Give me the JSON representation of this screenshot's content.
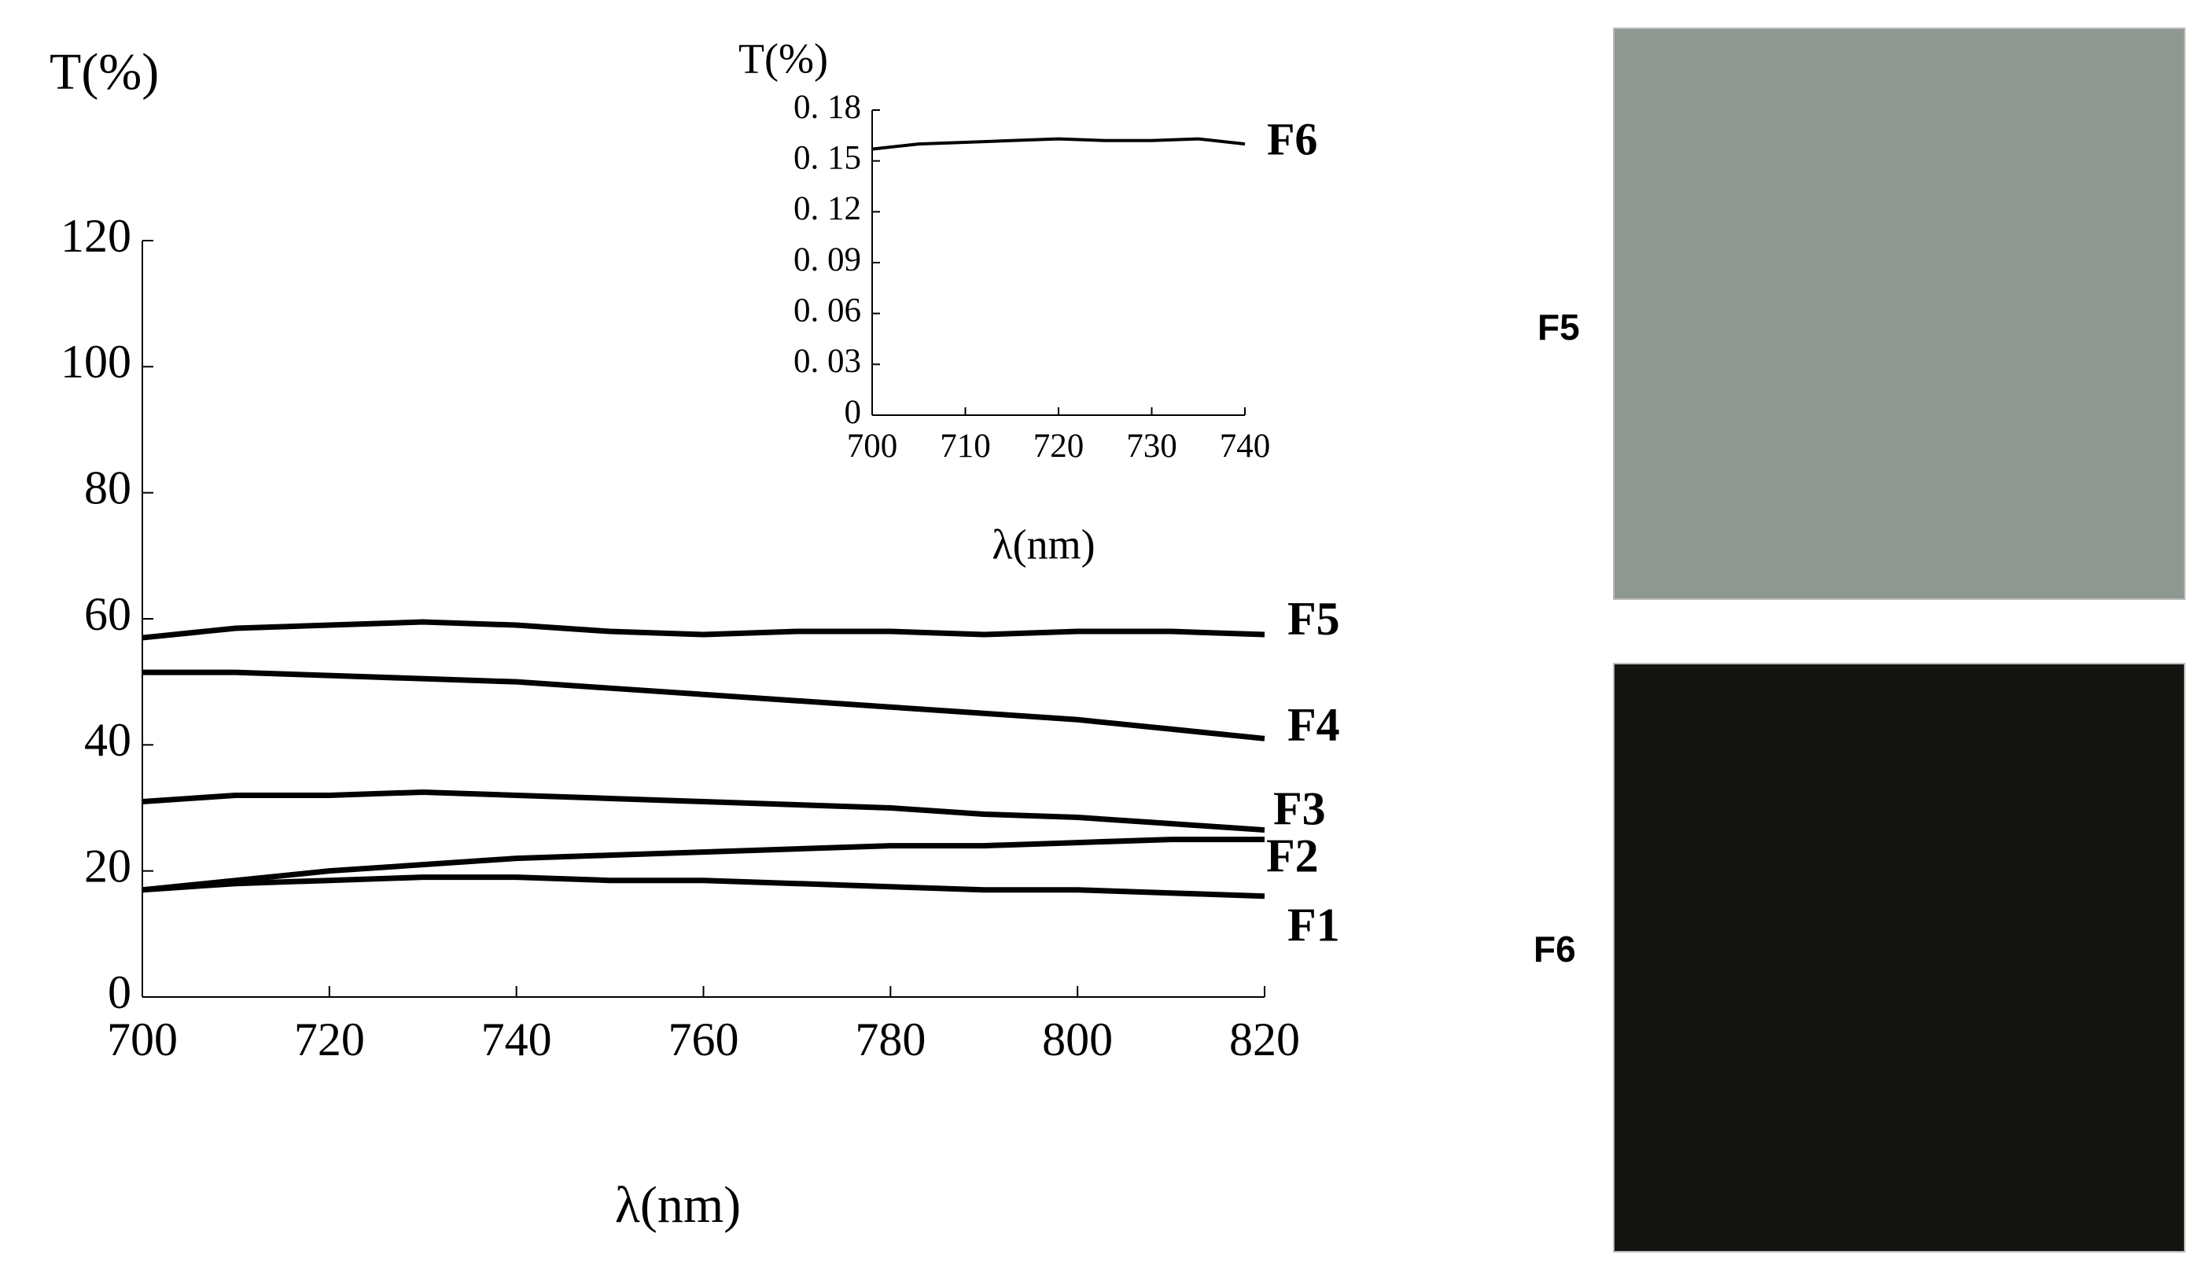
{
  "chart_data": [
    {
      "type": "line",
      "y_label": "T(%)",
      "x_label": "λ(nm)",
      "x": [
        700,
        710,
        720,
        730,
        740,
        750,
        760,
        770,
        780,
        790,
        800,
        810,
        820
      ],
      "series": [
        {
          "name": "F1",
          "color": "#000000",
          "values": [
            17,
            18,
            18.5,
            19,
            19,
            18.5,
            18.5,
            18,
            17.5,
            17,
            17,
            16.5,
            16
          ]
        },
        {
          "name": "F2",
          "color": "#000000",
          "values": [
            17,
            18.5,
            20,
            21,
            22,
            22.5,
            23,
            23.5,
            24,
            24,
            24.5,
            25,
            25
          ]
        },
        {
          "name": "F3",
          "color": "#000000",
          "values": [
            31,
            32,
            32,
            32.5,
            32,
            31.5,
            31,
            30.5,
            30,
            29,
            28.5,
            27.5,
            26.5
          ]
        },
        {
          "name": "F4",
          "color": "#000000",
          "values": [
            51.5,
            51.5,
            51,
            50.5,
            50,
            49,
            48,
            47,
            46,
            45,
            44,
            42.5,
            41
          ]
        },
        {
          "name": "F5",
          "color": "#000000",
          "values": [
            57,
            58.5,
            59,
            59.5,
            59,
            58,
            57.5,
            58,
            58,
            57.5,
            58,
            58,
            57.5
          ]
        }
      ],
      "xlim": [
        700,
        820
      ],
      "xticks": [
        700,
        720,
        740,
        760,
        780,
        800,
        820
      ],
      "ylim": [
        0,
        120
      ],
      "yticks": [
        0,
        20,
        40,
        60,
        80,
        100,
        120
      ]
    },
    {
      "type": "line",
      "y_label": "T(%)",
      "x_label": "λ(nm)",
      "x": [
        700,
        705,
        710,
        715,
        720,
        725,
        730,
        735,
        740
      ],
      "series": [
        {
          "name": "F6",
          "color": "#000000",
          "values": [
            0.157,
            0.16,
            0.161,
            0.162,
            0.163,
            0.162,
            0.162,
            0.163,
            0.16
          ]
        }
      ],
      "xlim": [
        700,
        740
      ],
      "xticks": [
        700,
        710,
        720,
        730,
        740
      ],
      "ylim": [
        0,
        0.18
      ],
      "yticks": [
        0,
        {
          "value": 0.03,
          "label": "0. 03"
        },
        {
          "value": 0.06,
          "label": "0. 06"
        },
        {
          "value": 0.09,
          "label": "0. 09"
        },
        {
          "value": 0.12,
          "label": "0. 12"
        },
        {
          "value": 0.15,
          "label": "0. 15"
        },
        {
          "value": 0.18,
          "label": "0. 18"
        }
      ]
    }
  ],
  "photos": [
    {
      "label": "F5",
      "color": "#8f9890"
    },
    {
      "label": "F6",
      "color": "#141511"
    }
  ]
}
